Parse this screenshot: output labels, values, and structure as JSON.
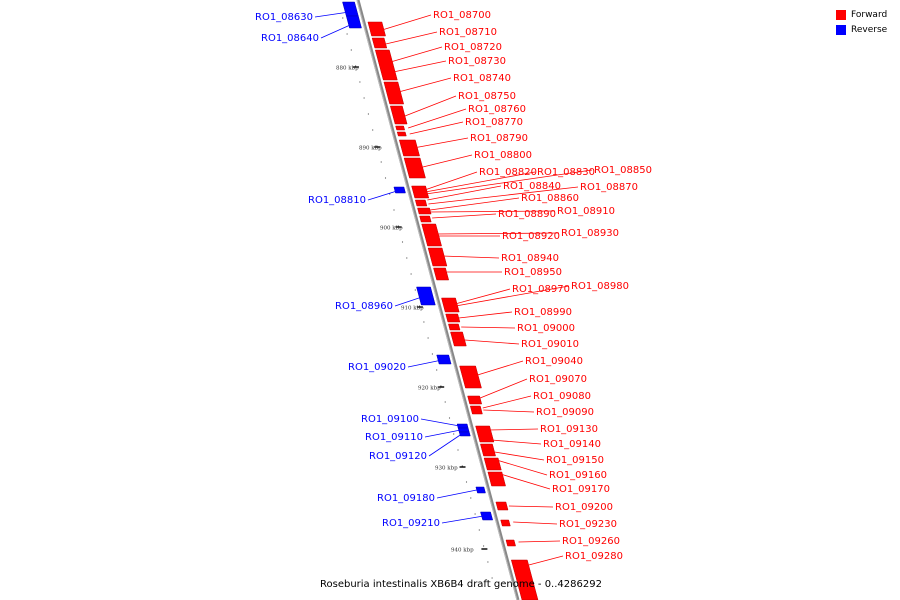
{
  "legend": {
    "items": [
      {
        "label": "Forward",
        "color": "#ff0000"
      },
      {
        "label": "Reverse",
        "color": "#0000ff"
      }
    ]
  },
  "caption": "Roseburia intestinalis XB6B4 draft genome - 0..4286292",
  "ticks": [
    "880 kbp",
    "890 kbp",
    "900 kbp",
    "910 kbp",
    "920 kbp",
    "930 kbp",
    "940 kbp"
  ],
  "reverse_genes": [
    "RO1_08630",
    "RO1_08640",
    "RO1_08810",
    "RO1_08960",
    "RO1_09020",
    "RO1_09100",
    "RO1_09110",
    "RO1_09120",
    "RO1_09180",
    "RO1_09210"
  ],
  "forward_genes": [
    "RO1_08700",
    "RO1_08710",
    "RO1_08720",
    "RO1_08730",
    "RO1_08740",
    "RO1_08750",
    "RO1_08760",
    "RO1_08770",
    "RO1_08790",
    "RO1_08800",
    "RO1_08820",
    "RO1_08830",
    "RO1_08850",
    "RO1_08840",
    "RO1_08870",
    "RO1_08860",
    "RO1_08910",
    "RO1_08890",
    "RO1_08920",
    "RO1_08930",
    "RO1_08940",
    "RO1_08950",
    "RO1_08970",
    "RO1_08980",
    "RO1_08990",
    "RO1_09000",
    "RO1_09010",
    "RO1_09040",
    "RO1_09070",
    "RO1_09080",
    "RO1_09090",
    "RO1_09130",
    "RO1_09140",
    "RO1_09150",
    "RO1_09160",
    "RO1_09170",
    "RO1_09200",
    "RO1_09230",
    "RO1_09260",
    "RO1_09280"
  ]
}
